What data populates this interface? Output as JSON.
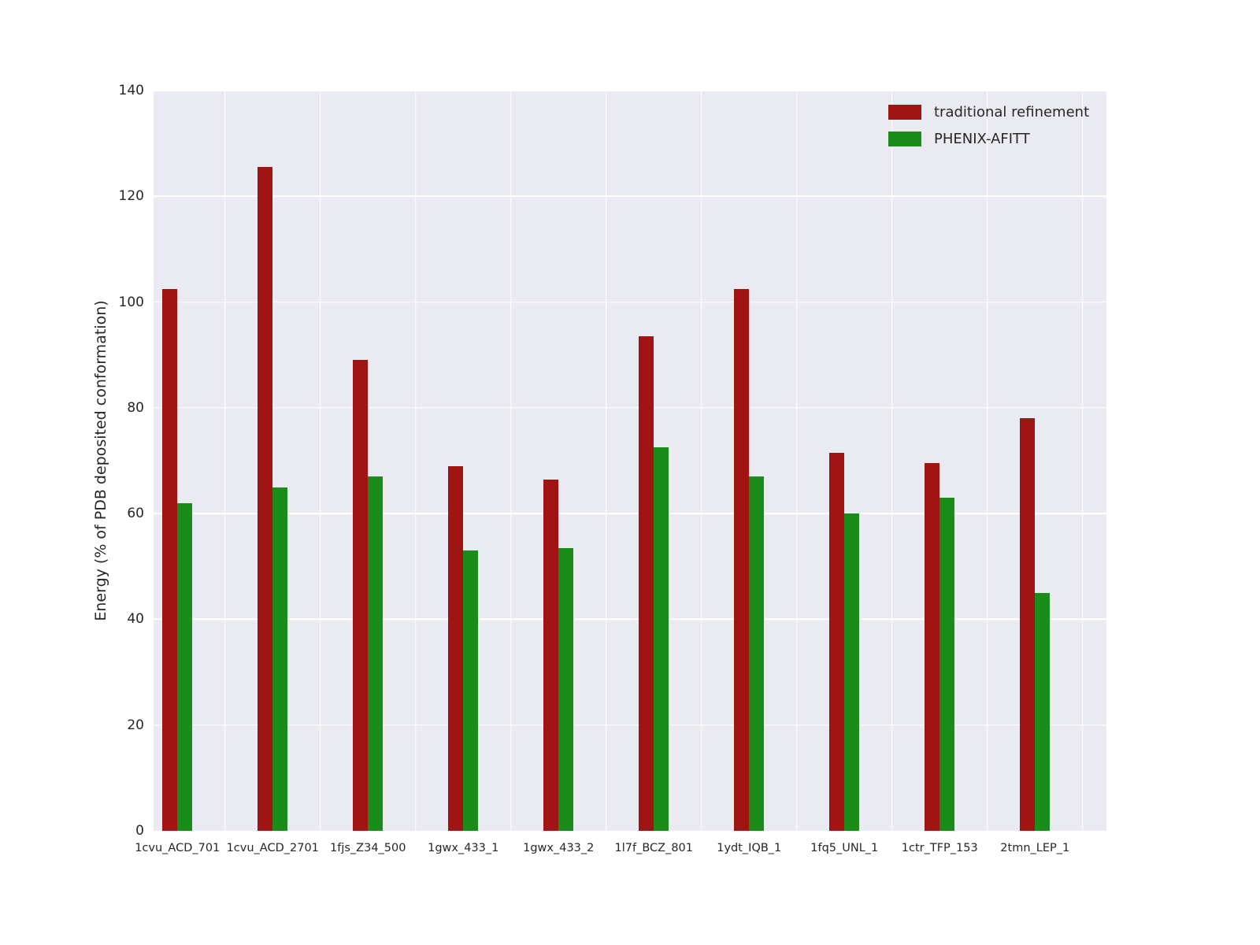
{
  "chart_data": {
    "type": "bar",
    "title": "",
    "xlabel": "",
    "ylabel": "Energy (% of PDB deposited conformation)",
    "ylim": [
      0,
      140
    ],
    "yticks": [
      0,
      20,
      40,
      60,
      80,
      100,
      120,
      140
    ],
    "grid": true,
    "legend_position": "upper right",
    "categories": [
      "1cvu_ACD_701",
      "1cvu_ACD_2701",
      "1fjs_Z34_500",
      "1gwx_433_1",
      "1gwx_433_2",
      "1l7f_BCZ_801",
      "1ydt_IQB_1",
      "1fq5_UNL_1",
      "1ctr_TFP_153",
      "2tmn_LEP_1"
    ],
    "series": [
      {
        "name": "traditional refinement",
        "color": "#a11414",
        "values": [
          102.5,
          125.5,
          89.0,
          69.0,
          66.5,
          93.5,
          102.5,
          71.5,
          69.5,
          78.0
        ]
      },
      {
        "name": "PHENIX-AFITT",
        "color": "#1a8c1a",
        "values": [
          62.0,
          65.0,
          67.0,
          53.0,
          53.5,
          72.5,
          67.0,
          60.0,
          63.0,
          45.0
        ]
      }
    ],
    "plot_bg": "#eaeaf2",
    "grid_color": "#ffffff",
    "text_color": "#262626"
  }
}
